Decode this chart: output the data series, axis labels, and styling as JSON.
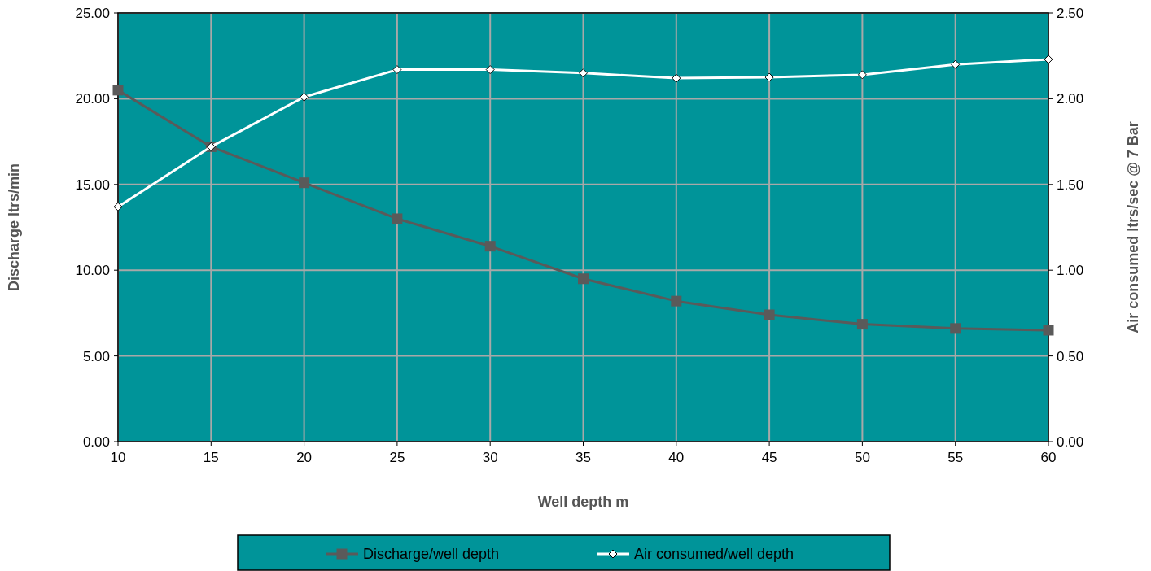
{
  "chart_data": {
    "type": "line",
    "xlabel": "Well depth m",
    "ylabel": "Discharge ltrs/min",
    "y2label": "Air consumed ltrs/sec @ 7 Bar",
    "x": [
      10,
      15,
      20,
      25,
      30,
      35,
      40,
      45,
      50,
      55,
      60
    ],
    "xlim": [
      10,
      60
    ],
    "xticks": [
      10,
      15,
      20,
      25,
      30,
      35,
      40,
      45,
      50,
      55,
      60
    ],
    "ylim": [
      0,
      25
    ],
    "yticks": [
      {
        "value": 0,
        "label": "0.00"
      },
      {
        "value": 5,
        "label": "5.00"
      },
      {
        "value": 10,
        "label": "10.00"
      },
      {
        "value": 15,
        "label": "15.00"
      },
      {
        "value": 20,
        "label": "20.00"
      },
      {
        "value": 25,
        "label": "25.00"
      }
    ],
    "y2lim": [
      0,
      2.5
    ],
    "y2ticks": [
      {
        "value": 0,
        "label": "0.00"
      },
      {
        "value": 0.5,
        "label": "0.50"
      },
      {
        "value": 1,
        "label": "1.00"
      },
      {
        "value": 1.5,
        "label": "1.50"
      },
      {
        "value": 2,
        "label": "2.00"
      },
      {
        "value": 2.5,
        "label": "2.50"
      }
    ],
    "series": [
      {
        "name": "Discharge/well depth",
        "color": "#5a5a5a",
        "marker": "square",
        "values": [
          20.5,
          17.2,
          15.1,
          13.0,
          11.4,
          9.5,
          8.2,
          7.4,
          6.85,
          6.6,
          6.5
        ]
      },
      {
        "name": "Air consumed/well depth",
        "color": "#ffffff",
        "marker": "diamond",
        "axis": "y2",
        "values": [
          1.37,
          1.72,
          2.01,
          2.17,
          2.17,
          2.15,
          2.12,
          2.125,
          2.14,
          2.2,
          2.23
        ]
      }
    ],
    "grid": true,
    "legend": "bottom",
    "line_style": "solid"
  }
}
